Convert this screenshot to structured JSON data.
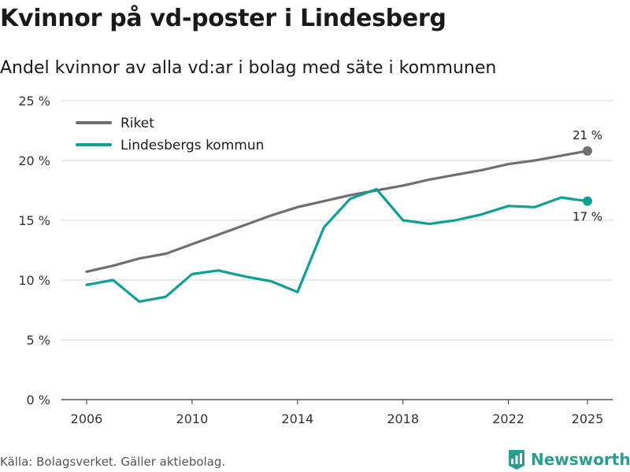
{
  "title": "Kvinnor på vd-poster i Lindesberg",
  "subtitle": "Andel kvinnor av alla vd:ar i bolag med säte i kommunen",
  "source": "Källa: Bolagsverket. Gäller aktiebolag.",
  "brand": "Newsworthy",
  "colors": {
    "riket": "#707070",
    "kommun": "#0e9f95",
    "grid": "#d9d9d9",
    "brand": "#2a9d8f"
  },
  "chart_data": {
    "type": "line",
    "title": "Kvinnor på vd-poster i Lindesberg",
    "subtitle": "Andel kvinnor av alla vd:ar i bolag med säte i kommunen",
    "xlabel": "",
    "ylabel": "",
    "x": [
      2006,
      2007,
      2008,
      2009,
      2010,
      2011,
      2012,
      2013,
      2014,
      2015,
      2016,
      2017,
      2018,
      2019,
      2020,
      2021,
      2022,
      2023,
      2024,
      2025
    ],
    "xticks": [
      2006,
      2010,
      2014,
      2018,
      2022,
      2025
    ],
    "xtick_labels": [
      "2006",
      "2010",
      "2014",
      "2018",
      "2022",
      "2025"
    ],
    "ylim": [
      0,
      25
    ],
    "yticks": [
      0,
      5,
      10,
      15,
      20,
      25
    ],
    "ytick_labels": [
      "0 %",
      "5 %",
      "10 %",
      "15 %",
      "20 %",
      "25 %"
    ],
    "grid": true,
    "legend": "top-left",
    "series": [
      {
        "name": "Riket",
        "key": "riket",
        "values": [
          10.7,
          11.2,
          11.8,
          12.2,
          13.0,
          13.8,
          14.6,
          15.4,
          16.1,
          16.6,
          17.1,
          17.5,
          17.9,
          18.4,
          18.8,
          19.2,
          19.7,
          20.0,
          20.4,
          20.8
        ],
        "end_label": "21 %",
        "end_label_pos": "above"
      },
      {
        "name": "Lindesbergs kommun",
        "key": "kommun",
        "values": [
          9.6,
          10.0,
          8.2,
          8.6,
          10.5,
          10.8,
          10.3,
          9.9,
          9.0,
          14.4,
          16.8,
          17.6,
          15.0,
          14.7,
          15.0,
          15.5,
          16.2,
          16.1,
          16.9,
          16.6
        ],
        "end_label": "17 %",
        "end_label_pos": "below"
      }
    ]
  }
}
